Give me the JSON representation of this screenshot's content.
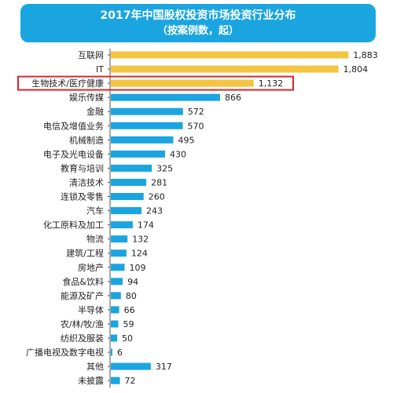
{
  "chart_data": {
    "type": "bar",
    "orientation": "horizontal",
    "title": "2017年中国股权投资市场投资行业分布",
    "subtitle": "（按案例数，起）",
    "categories": [
      "互联网",
      "IT",
      "生物技术/医疗健康",
      "娱乐传媒",
      "金融",
      "电信及增值业务",
      "机械制造",
      "电子及光电设备",
      "教育与培训",
      "清洁技术",
      "连锁及零售",
      "汽车",
      "化工原料及加工",
      "物流",
      "建筑/工程",
      "房地产",
      "食品&饮料",
      "能源及矿产",
      "半导体",
      "农/林/牧/渔",
      "纺织及服装",
      "广播电视及数字电视",
      "其他",
      "未披露"
    ],
    "values": [
      1883,
      1804,
      1132,
      866,
      572,
      570,
      495,
      430,
      325,
      281,
      260,
      243,
      174,
      132,
      124,
      109,
      94,
      80,
      66,
      59,
      50,
      6,
      317,
      72
    ],
    "value_labels": [
      "1,883",
      "1,804",
      "1,132",
      "866",
      "572",
      "570",
      "495",
      "430",
      "325",
      "281",
      "260",
      "243",
      "174",
      "132",
      "124",
      "109",
      "94",
      "80",
      "66",
      "59",
      "50",
      "6",
      "317",
      "72"
    ],
    "highlighted_categories": [
      "互联网",
      "IT",
      "生物技术/医疗健康"
    ],
    "boxed_category": "生物技术/医疗健康",
    "xlim": [
      0,
      1900
    ],
    "grid": false,
    "legend": "none",
    "colors": {
      "highlight_bar": "#f4c542",
      "default_bar": "#1ba5e0",
      "box": "#d9262c",
      "banner": "#1ba5e0",
      "axis": "#555555"
    }
  }
}
